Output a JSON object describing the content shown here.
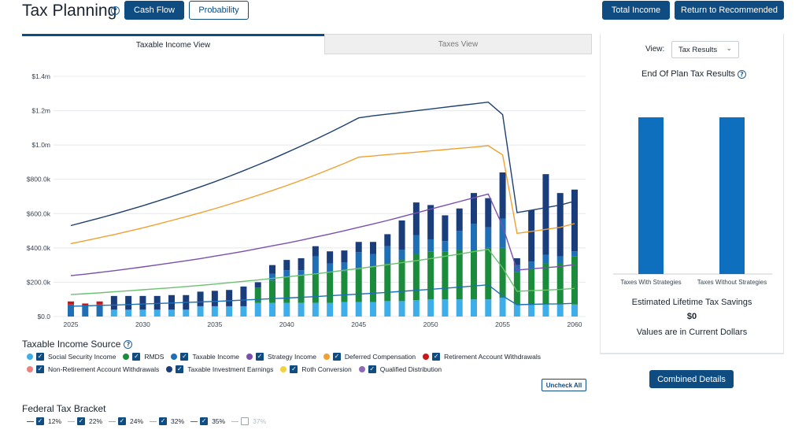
{
  "page": {
    "title": "Tax Planning",
    "buttons": {
      "cash_flow": "Cash Flow",
      "probability": "Probability",
      "total_income": "Total Income",
      "return_recommended": "Return to Recommended"
    }
  },
  "tabs": [
    {
      "label": "Taxable Income View",
      "active": true
    },
    {
      "label": "Taxes View",
      "active": false
    }
  ],
  "chart_data": {
    "type": "bar",
    "subtype": "stacked bar with line overlays",
    "x": [
      2025,
      2026,
      2027,
      2028,
      2029,
      2030,
      2031,
      2032,
      2033,
      2034,
      2035,
      2036,
      2037,
      2038,
      2039,
      2040,
      2041,
      2042,
      2043,
      2044,
      2045,
      2046,
      2047,
      2048,
      2049,
      2050,
      2051,
      2052,
      2053,
      2054,
      2055,
      2056,
      2057,
      2058,
      2059,
      2060
    ],
    "x_ticks": [
      "2025",
      "2030",
      "2035",
      "2040",
      "2045",
      "2050",
      "2055",
      "2060"
    ],
    "y_ticks": [
      "$0.0",
      "$200.0k",
      "$400.0k",
      "$600.0k",
      "$800.0k",
      "$1.0m",
      "$1.2m",
      "$1.4m"
    ],
    "ylim": [
      0,
      1400
    ],
    "units": "thousands of dollars",
    "grid": true,
    "series": [
      {
        "name": "Social Security Income",
        "color": "#3daee9",
        "values": [
          0,
          0,
          0,
          40,
          40,
          40,
          40,
          40,
          40,
          60,
          60,
          60,
          60,
          80,
          80,
          80,
          80,
          80,
          80,
          85,
          85,
          85,
          90,
          90,
          95,
          100,
          100,
          100,
          100,
          100,
          110,
          70,
          70,
          70,
          70,
          70
        ]
      },
      {
        "name": "RMDS",
        "color": "#1b8c3b",
        "values": [
          0,
          0,
          0,
          0,
          0,
          0,
          0,
          0,
          0,
          0,
          0,
          0,
          0,
          90,
          130,
          150,
          160,
          170,
          180,
          180,
          190,
          200,
          220,
          240,
          270,
          280,
          280,
          290,
          290,
          300,
          290,
          190,
          210,
          240,
          240,
          280
        ]
      },
      {
        "name": "Taxable Income",
        "color": "#1e6fb5",
        "values": [
          70,
          60,
          70,
          0,
          0,
          0,
          0,
          0,
          0,
          0,
          0,
          0,
          0,
          0,
          0,
          0,
          0,
          0,
          0,
          0,
          0,
          0,
          0,
          0,
          0,
          0,
          0,
          0,
          0,
          0,
          0,
          0,
          0,
          0,
          0,
          0
        ]
      },
      {
        "name": "Taxable Investment Earnings",
        "color": "#1a3d7c",
        "values": [
          0,
          0,
          0,
          80,
          80,
          80,
          80,
          85,
          85,
          85,
          90,
          95,
          115,
          0,
          0,
          0,
          0,
          0,
          0,
          0,
          0,
          0,
          0,
          0,
          0,
          0,
          0,
          0,
          0,
          0,
          0,
          0,
          0,
          0,
          0,
          0
        ]
      },
      {
        "name": "Retirement Account Withdrawals",
        "color": "#c81818",
        "values": [
          18,
          16,
          18,
          0,
          0,
          0,
          0,
          0,
          0,
          0,
          0,
          0,
          0,
          0,
          0,
          0,
          0,
          0,
          0,
          0,
          0,
          0,
          0,
          0,
          0,
          0,
          0,
          0,
          0,
          0,
          0,
          0,
          0,
          0,
          0,
          0
        ]
      },
      {
        "name": "Qualified Distribution (upper)",
        "color": "#1e6fb5",
        "values": [
          0,
          0,
          0,
          0,
          0,
          0,
          0,
          0,
          0,
          0,
          0,
          0,
          0,
          0,
          40,
          40,
          30,
          100,
          50,
          50,
          100,
          80,
          100,
          60,
          110,
          70,
          60,
          110,
          150,
          120,
          170,
          40,
          40,
          50,
          40,
          30
        ]
      },
      {
        "name": "Taxable Investment Earnings (top)",
        "color": "#1a3d7c",
        "values": [
          0,
          0,
          0,
          0,
          0,
          0,
          0,
          0,
          0,
          0,
          0,
          0,
          0,
          30,
          50,
          60,
          70,
          60,
          70,
          70,
          60,
          70,
          70,
          170,
          190,
          200,
          150,
          130,
          180,
          170,
          270,
          40,
          300,
          470,
          370,
          360
        ]
      }
    ],
    "lines": [
      {
        "name": "37% bracket",
        "color": "#1f3f6e",
        "values": [
          530,
          552,
          574,
          597,
          621,
          646,
          672,
          699,
          727,
          756,
          786,
          817,
          850,
          884,
          919,
          956,
          994,
          1033,
          1073,
          1115,
          1158,
          1170,
          1180,
          1190,
          1200,
          1210,
          1220,
          1230,
          1240,
          1250,
          1177,
          606,
          620,
          635,
          650,
          672
        ]
      },
      {
        "name": "35% bracket",
        "color": "#f0a030",
        "values": [
          425,
          442,
          460,
          478,
          497,
          517,
          538,
          560,
          582,
          605,
          629,
          654,
          680,
          707,
          735,
          764,
          794,
          826,
          859,
          893,
          929,
          936,
          944,
          951,
          958,
          966,
          973,
          981,
          988,
          996,
          942,
          485,
          496,
          508,
          520,
          542
        ]
      },
      {
        "name": "32% bracket",
        "color": "#7a4fb0",
        "values": [
          238,
          247,
          257,
          267,
          278,
          289,
          301,
          313,
          325,
          338,
          352,
          366,
          380,
          396,
          412,
          428,
          445,
          463,
          481,
          500,
          520,
          540,
          560,
          582,
          604,
          626,
          648,
          670,
          692,
          714,
          527,
          271,
          278,
          285,
          292,
          303
        ]
      },
      {
        "name": "24% bracket",
        "color": "#6cc070",
        "values": [
          128,
          133,
          138,
          144,
          150,
          156,
          162,
          168,
          175,
          182,
          189,
          197,
          205,
          213,
          222,
          231,
          240,
          249,
          259,
          270,
          280,
          291,
          302,
          314,
          326,
          338,
          351,
          364,
          378,
          392,
          284,
          147,
          151,
          154,
          158,
          164
        ]
      },
      {
        "name": "22% bracket",
        "color": "#1e6fb5",
        "values": [
          60,
          62,
          65,
          67,
          70,
          73,
          76,
          79,
          82,
          85,
          88,
          92,
          96,
          100,
          104,
          108,
          112,
          116,
          121,
          126,
          131,
          136,
          141,
          147,
          153,
          159,
          165,
          171,
          178,
          185,
          120,
          69,
          71,
          73,
          74,
          77
        ]
      }
    ]
  },
  "taxable_income_source": {
    "title": "Taxable Income Source",
    "row1": [
      {
        "label": "Social Security Income",
        "color": "#3daee9"
      },
      {
        "label": "RMDS",
        "color": "#1b8c3b"
      },
      {
        "label": "Taxable Income",
        "color": "#1e6fb5"
      },
      {
        "label": "Strategy Income",
        "color": "#7a4fb0"
      },
      {
        "label": "Deferred Compensation",
        "color": "#f0a030"
      },
      {
        "label": "Retirement Account Withdrawals",
        "color": "#c81818"
      }
    ],
    "row2": [
      {
        "label": "Non-Retirement Account Withdrawals",
        "color": "#f08080"
      },
      {
        "label": "Taxable Investment Earnings",
        "color": "#1a3d7c"
      },
      {
        "label": "Roth Conversion",
        "color": "#f5d040"
      },
      {
        "label": "Qualified Distribution",
        "color": "#8e6bb8"
      }
    ],
    "uncheck_all": "Uncheck All"
  },
  "federal_tax_bracket": {
    "title": "Federal Tax Bracket",
    "items": [
      {
        "label": "12%",
        "color": "#1f5f99",
        "checked": true
      },
      {
        "label": "22%",
        "color": "#9cc6a6",
        "checked": true
      },
      {
        "label": "24%",
        "color": "#8aa8d8",
        "checked": true
      },
      {
        "label": "32%",
        "color": "#f0a030",
        "checked": true
      },
      {
        "label": "35%",
        "color": "#7a4fb0",
        "checked": true
      },
      {
        "label": "37%",
        "color": "#b7bcc3",
        "checked": false
      }
    ]
  },
  "right_panel": {
    "view_label": "View:",
    "view_value": "Tax Results",
    "title": "End Of Plan Tax Results",
    "bars": [
      {
        "label": "Taxes With Strategies",
        "value": 1
      },
      {
        "label": "Taxes Without Strategies",
        "value": 1
      }
    ],
    "bar_color": "#0f6fbf",
    "savings_label": "Estimated Lifetime Tax Savings",
    "savings_value": "$0",
    "note": "Values are in Current Dollars",
    "combined_details": "Combined Details"
  }
}
